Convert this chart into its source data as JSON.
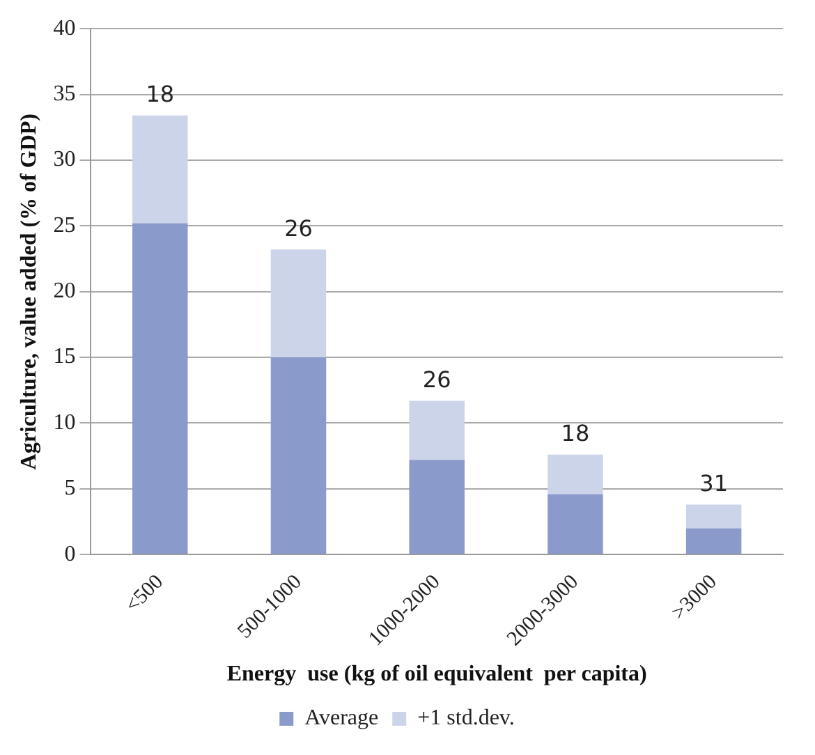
{
  "chart_data": {
    "type": "bar",
    "stacked": true,
    "xlabel": "Energy  use (kg of oil equivalent  per capita)",
    "ylabel": "Agriculture, value added (% of GDP)",
    "categories": [
      "<500",
      "500-1000",
      "1000-2000",
      "2000-3000",
      ">3000"
    ],
    "series": [
      {
        "name": "Average",
        "color": "#8a9acb",
        "values": [
          25.2,
          15,
          7.2,
          4.6,
          2.0
        ]
      },
      {
        "name": "+1 std.dev.",
        "color": "#ccd4ea",
        "values": [
          8.2,
          8.2,
          4.5,
          3.0,
          1.8
        ]
      }
    ],
    "ylim": [
      0,
      40
    ],
    "yticks": [
      0,
      5,
      10,
      15,
      20,
      25,
      30,
      35,
      40
    ],
    "grid": "y",
    "legend": "bottom",
    "annotations": [
      {
        "text": "18",
        "x": "<500",
        "y": 33.4
      },
      {
        "text": "26",
        "x": "500-1000",
        "y": 23.2
      },
      {
        "text": "26",
        "x": "1000-2000",
        "y": 11.7
      },
      {
        "text": "18",
        "x": "2000-3000",
        "y": 7.6
      },
      {
        "text": "31",
        "x": ">3000",
        "y": 3.8
      }
    ]
  }
}
